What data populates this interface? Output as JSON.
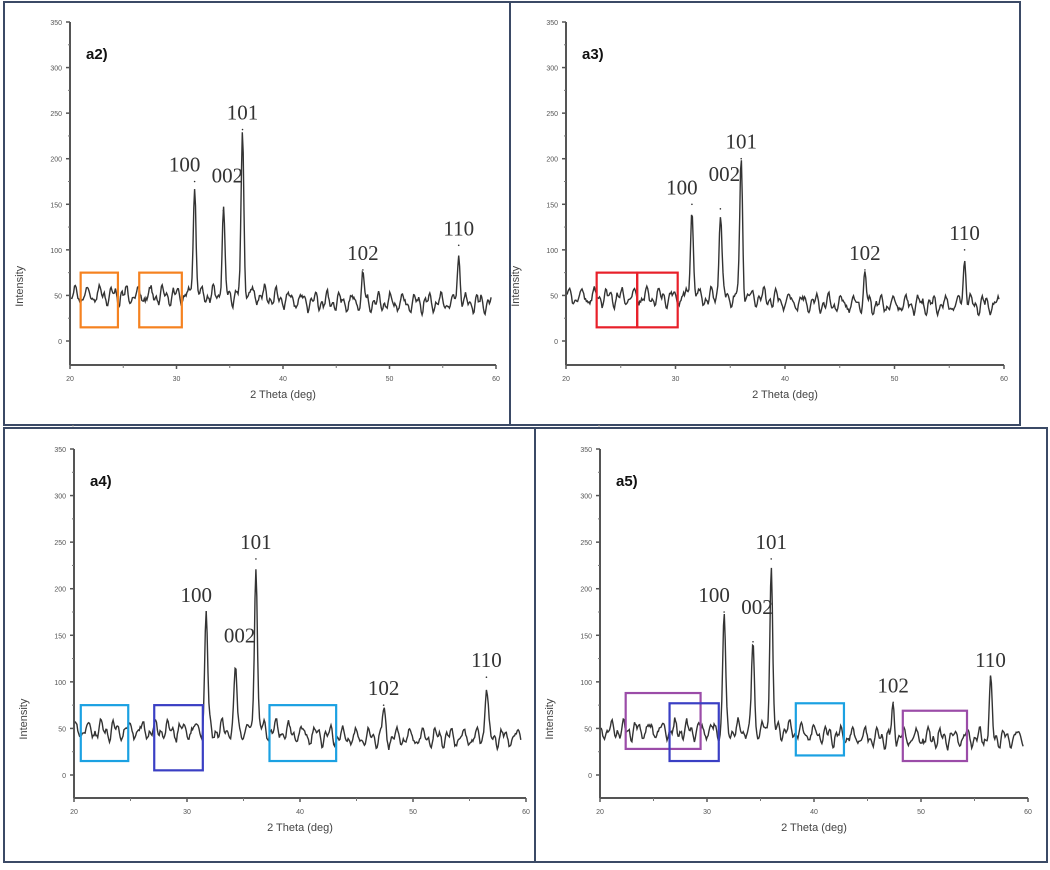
{
  "chart_data": [
    {
      "type": "line",
      "title": "a2)",
      "xlabel": "2 Theta (deg)",
      "ylabel": "Intensity",
      "xlim": [
        20,
        60
      ],
      "ylim": [
        0,
        350
      ],
      "xticks": [
        "20",
        "30",
        "40",
        "50",
        "60"
      ],
      "yticks": [
        "0",
        "50",
        "100",
        "150",
        "200",
        "250",
        "300",
        "350"
      ],
      "baseline": 50,
      "peaks": [
        {
          "label": "100",
          "x": 31.7,
          "y": 175
        },
        {
          "label": "002",
          "x": 34.4,
          "y": 143
        },
        {
          "label": "101",
          "x": 36.2,
          "y": 232
        },
        {
          "label": "102",
          "x": 47.5,
          "y": 78
        },
        {
          "label": "110",
          "x": 56.5,
          "y": 105
        }
      ],
      "highlight_boxes": [
        {
          "color": "#f58220",
          "x": [
            21,
            24.5
          ],
          "y": [
            15,
            75
          ]
        },
        {
          "color": "#f58220",
          "x": [
            26.5,
            30.5
          ],
          "y": [
            15,
            75
          ]
        }
      ]
    },
    {
      "type": "line",
      "title": "a3)",
      "xlabel": "2 Theta (deg)",
      "ylabel": "Intensity",
      "xlim": [
        20,
        60
      ],
      "ylim": [
        0,
        350
      ],
      "xticks": [
        "20",
        "30",
        "40",
        "50",
        "60"
      ],
      "yticks": [
        "0",
        "50",
        "100",
        "150",
        "200",
        "250",
        "300",
        "350"
      ],
      "baseline": 48,
      "peaks": [
        {
          "label": "100",
          "x": 31.5,
          "y": 150
        },
        {
          "label": "002",
          "x": 34.1,
          "y": 145
        },
        {
          "label": "101",
          "x": 36.0,
          "y": 200
        },
        {
          "label": "102",
          "x": 47.3,
          "y": 78
        },
        {
          "label": "110",
          "x": 56.4,
          "y": 100
        }
      ],
      "highlight_boxes": [
        {
          "color": "#e8202a",
          "x": [
            22.8,
            26.5
          ],
          "y": [
            15,
            75
          ]
        },
        {
          "color": "#e8202a",
          "x": [
            26.5,
            30.2
          ],
          "y": [
            15,
            75
          ]
        }
      ]
    },
    {
      "type": "line",
      "title": "a4)",
      "xlabel": "2 Theta (deg)",
      "ylabel": "Intensity",
      "xlim": [
        20,
        60
      ],
      "ylim": [
        0,
        350
      ],
      "xticks": [
        "20",
        "30",
        "40",
        "50",
        "60"
      ],
      "yticks": [
        "0",
        "50",
        "100",
        "150",
        "200",
        "250",
        "300",
        "350"
      ],
      "baseline": 48,
      "peaks": [
        {
          "label": "100",
          "x": 31.7,
          "y": 175
        },
        {
          "label": "002",
          "x": 34.3,
          "y": 112
        },
        {
          "label": "101",
          "x": 36.1,
          "y": 232
        },
        {
          "label": "102",
          "x": 47.4,
          "y": 75
        },
        {
          "label": "110",
          "x": 56.5,
          "y": 105
        }
      ],
      "highlight_boxes": [
        {
          "color": "#1ba1e2",
          "x": [
            20.6,
            24.8
          ],
          "y": [
            15,
            75
          ]
        },
        {
          "color": "#3a3fc4",
          "x": [
            27.1,
            31.4
          ],
          "y": [
            5,
            75
          ]
        },
        {
          "color": "#1ba1e2",
          "x": [
            37.3,
            43.2
          ],
          "y": [
            15,
            75
          ]
        }
      ]
    },
    {
      "type": "line",
      "title": "a5)",
      "xlabel": "2 Theta (deg)",
      "ylabel": "Intensity",
      "xlim": [
        20,
        60
      ],
      "ylim": [
        0,
        350
      ],
      "xticks": [
        "20",
        "30",
        "40",
        "50",
        "60"
      ],
      "yticks": [
        "0",
        "50",
        "100",
        "150",
        "200",
        "250",
        "300",
        "350"
      ],
      "baseline": 48,
      "peaks": [
        {
          "label": "100",
          "x": 31.6,
          "y": 175
        },
        {
          "label": "002",
          "x": 34.3,
          "y": 143
        },
        {
          "label": "101",
          "x": 36.0,
          "y": 232
        },
        {
          "label": "102",
          "x": 47.4,
          "y": 78
        },
        {
          "label": "110",
          "x": 56.5,
          "y": 105
        }
      ],
      "highlight_boxes": [
        {
          "color": "#9b4ca8",
          "x": [
            22.4,
            29.4
          ],
          "y": [
            28,
            88
          ]
        },
        {
          "color": "#3a3fc4",
          "x": [
            26.5,
            31.1
          ],
          "y": [
            15,
            77
          ]
        },
        {
          "color": "#1ba1e2",
          "x": [
            38.3,
            42.8
          ],
          "y": [
            21,
            77
          ]
        },
        {
          "color": "#9b4ca8",
          "x": [
            48.3,
            54.3
          ],
          "y": [
            15,
            69
          ]
        }
      ]
    }
  ]
}
